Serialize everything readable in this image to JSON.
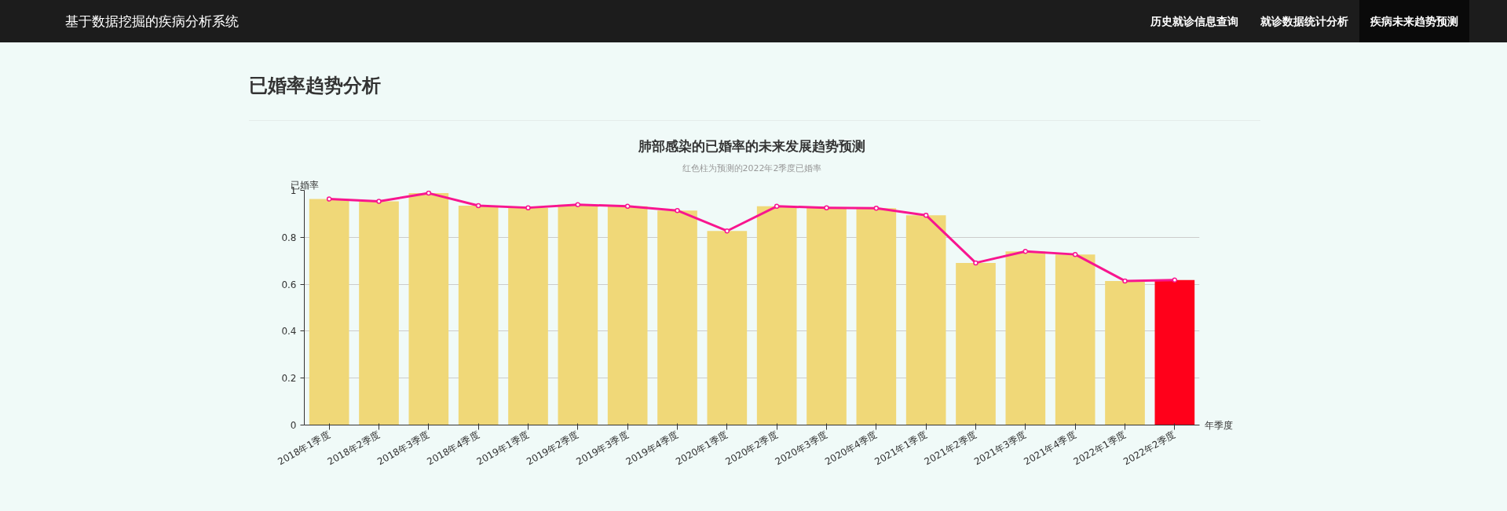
{
  "chart_data": {
    "type": "bar",
    "title": "肺部感染的已婚率的未来发展趋势预测",
    "subtitle": "红色柱为预测的2022年2季度已婚率",
    "ylabel": "已婚率",
    "xlabel": "年季度",
    "annotations": [
      "基于数据挖掘的疾病分析系统",
      "历史就诊信息查询",
      "就诊数据统计分析",
      "疾病未来趋势预测",
      "已婚率趋势分析"
    ],
    "categories": [
      "2018年1季度",
      "2018年2季度",
      "2018年3季度",
      "2018年4季度",
      "2019年1季度",
      "2019年2季度",
      "2019年3季度",
      "2019年4季度",
      "2020年1季度",
      "2020年2季度",
      "2020年3季度",
      "2020年4季度",
      "2021年1季度",
      "2021年2季度",
      "2021年3季度",
      "2021年4季度",
      "2022年1季度",
      "2022年2季度"
    ],
    "series": [
      {
        "colors": [
          "#f0d878",
          "#f0d878",
          "#f0d878",
          "#f0d878",
          "#f0d878",
          "#f0d878",
          "#f0d878",
          "#f0d878",
          "#f0d878",
          "#f0d878",
          "#f0d878",
          "#f0d878",
          "#f0d878",
          "#f0d878",
          "#f0d878",
          "#f0d878",
          "#f0d878",
          "#ff001a"
        ],
        "values": [
          0.963,
          0.953,
          0.988,
          0.935,
          0.926,
          0.939,
          0.932,
          0.914,
          0.827,
          0.932,
          0.926,
          0.924,
          0.894,
          0.691,
          0.74,
          0.727,
          0.614,
          0.618
        ]
      },
      {
        "type": "line",
        "color": "#f8168f",
        "marker": "circle",
        "values": [
          0.963,
          0.953,
          0.988,
          0.935,
          0.926,
          0.939,
          0.932,
          0.914,
          0.827,
          0.932,
          0.926,
          0.924,
          0.894,
          0.691,
          0.74,
          0.727,
          0.614,
          0.618
        ]
      }
    ],
    "ylim": [
      0,
      1
    ],
    "yticks": [
      0,
      0.2,
      0.4,
      0.6,
      0.8,
      {
        "value": 1,
        "label": "1"
      }
    ],
    "grid": "y"
  }
}
